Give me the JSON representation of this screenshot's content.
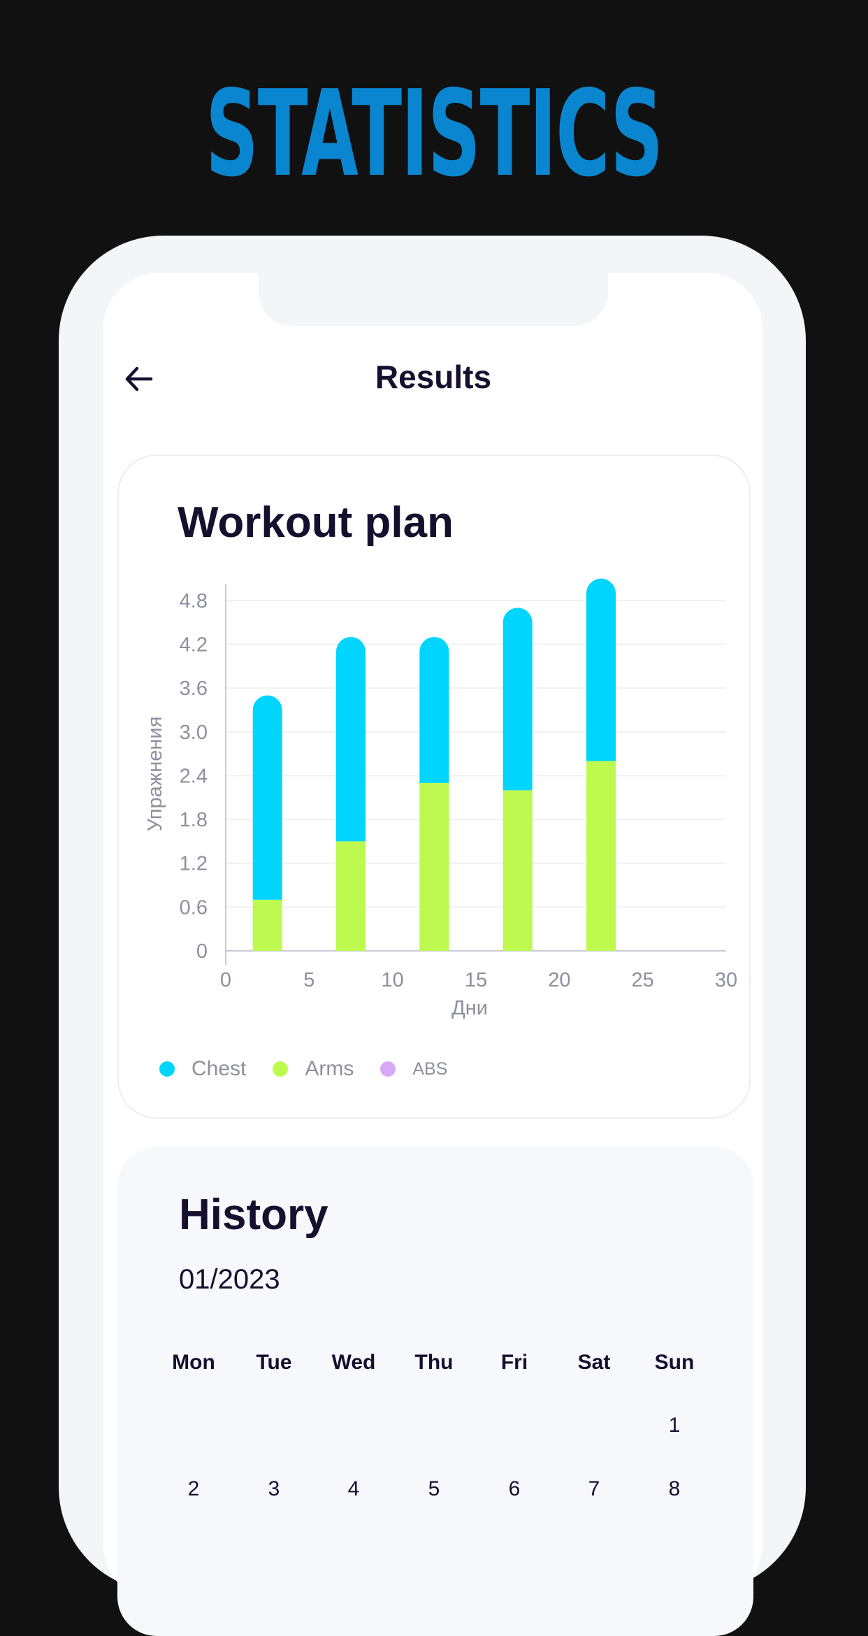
{
  "headline": "STATISTICS",
  "header": {
    "title": "Results",
    "back_icon": "arrow-left-icon"
  },
  "workout_card": {
    "title": "Workout plan"
  },
  "chart_data": {
    "type": "bar",
    "stacked": true,
    "title": "Workout plan",
    "xlabel": "Дни",
    "ylabel": "Упражнения",
    "xlim": [
      0,
      30
    ],
    "ylim": [
      0,
      5.0
    ],
    "x_ticks": [
      "0",
      "5",
      "10",
      "15",
      "20",
      "25",
      "30"
    ],
    "y_ticks": [
      "0",
      "0.6",
      "1.2",
      "1.8",
      "2.4",
      "3.0",
      "3.6",
      "4.2",
      "4.8"
    ],
    "x": [
      2.5,
      7.5,
      12.5,
      17.5,
      22.5
    ],
    "series": [
      {
        "name": "Arms",
        "color": "#bdf94f",
        "values": [
          0.7,
          1.5,
          2.3,
          2.2,
          2.6
        ]
      },
      {
        "name": "Chest",
        "color": "#00d5fd",
        "values": [
          2.8,
          2.8,
          2.0,
          2.5,
          2.5
        ]
      }
    ],
    "legend": [
      {
        "name": "Chest",
        "color": "#00d5fd"
      },
      {
        "name": "Arms",
        "color": "#bdf94f"
      },
      {
        "name": "ABS",
        "color": "#d8a8f7"
      }
    ],
    "grid": true,
    "legend_position": "bottom-left"
  },
  "history": {
    "title": "History",
    "month": "01/2023",
    "weekdays": [
      "Mon",
      "Tue",
      "Wed",
      "Thu",
      "Fri",
      "Sat",
      "Sun"
    ],
    "days": [
      "1",
      "2",
      "3",
      "4",
      "5",
      "6",
      "7",
      "8"
    ]
  }
}
